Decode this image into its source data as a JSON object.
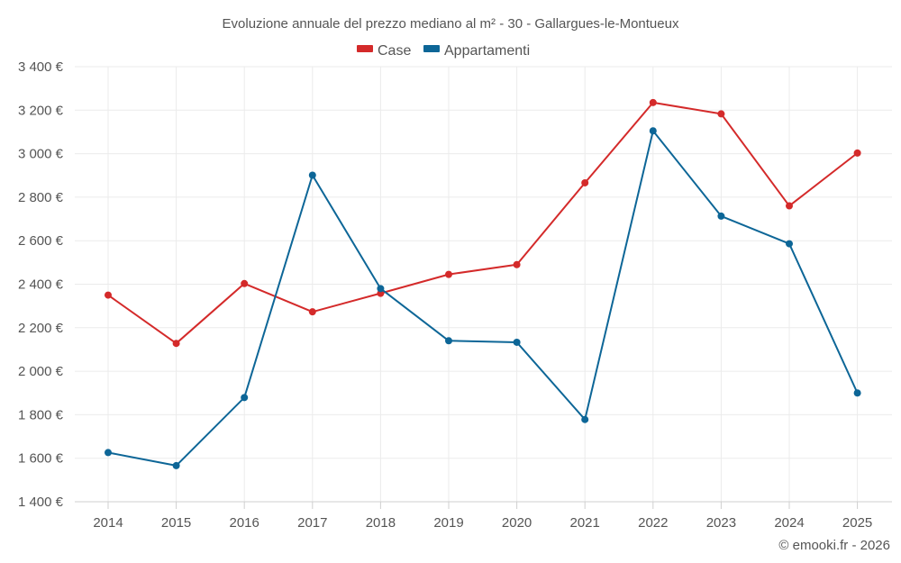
{
  "chart_data": {
    "type": "line",
    "title": "Evoluzione annuale del prezzo mediano al m² - 30 - Gallargues-le-Montueux",
    "categories": [
      "2014",
      "2015",
      "2016",
      "2017",
      "2018",
      "2019",
      "2020",
      "2021",
      "2022",
      "2023",
      "2024",
      "2025"
    ],
    "series": [
      {
        "name": "Case",
        "color": "#d42a2a",
        "values": [
          2350,
          2128,
          2403,
          2273,
          2358,
          2445,
          2490,
          2866,
          3235,
          3183,
          2760,
          3003
        ]
      },
      {
        "name": "Appartamenti",
        "color": "#0d6697",
        "values": [
          1626,
          1566,
          1879,
          2901,
          2380,
          2140,
          2133,
          1778,
          3105,
          2713,
          2586,
          1900
        ]
      }
    ],
    "ylim": [
      1400,
      3400
    ],
    "yticks": [
      1400,
      1600,
      1800,
      2000,
      2200,
      2400,
      2600,
      2800,
      3000,
      3200,
      3400
    ],
    "ytick_labels": [
      "1 400 €",
      "1 600 €",
      "1 800 €",
      "2 000 €",
      "2 200 €",
      "2 400 €",
      "2 600 €",
      "2 800 €",
      "3 000 €",
      "3 200 €",
      "3 400 €"
    ],
    "legend_position": "top-center",
    "grid": true
  },
  "credit": "© emooki.fr - 2026"
}
